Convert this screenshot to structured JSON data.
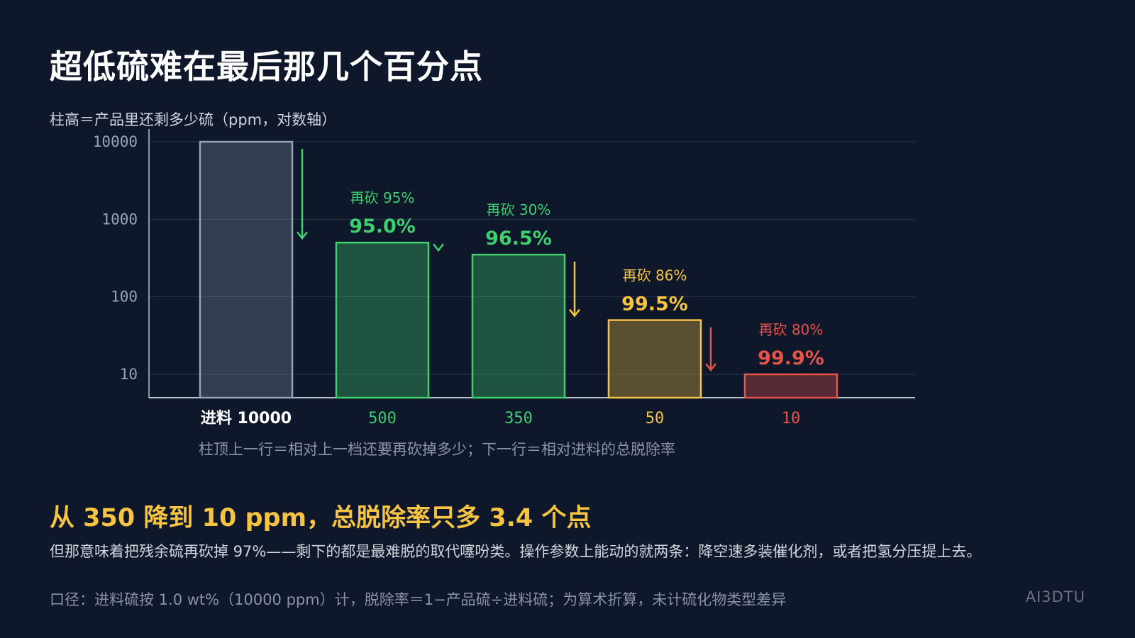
{
  "title": "超低硫难在最后那几个百分点",
  "note": "柱顶上一行＝相对上一档还要再砍掉多少；下一行＝相对进料的总脱除率",
  "headline": "从 350 降到 10 ppm，总脱除率只多 3.4 个点",
  "body": "但那意味着把残余硫再砍掉 97%——剩下的都是最难脱的取代噻吩类。操作参数上能动的就两条：降空速多装催化剂，或者把氢分压提上去。",
  "footnote": "口径：进料硫按 1.0 wt%（10000 ppm）计，脱除率＝1−产品硫÷进料硫；为算术折算，未计硫化物类型差异",
  "brand": "AI3DTU",
  "chart_data": {
    "type": "bar",
    "ylabel": "柱高＝产品里还剩多少硫（ppm，对数轴）",
    "yscale": "log",
    "ylim": [
      5,
      10000
    ],
    "yticks": [
      10,
      100,
      1000,
      10000
    ],
    "grid": true,
    "categories": [
      "进料 10000",
      "500",
      "350",
      "50",
      "10"
    ],
    "values": [
      10000,
      500,
      350,
      50,
      10
    ],
    "step_labels": [
      "",
      "再砍 95%",
      "再砍 30%",
      "再砍 86%",
      "再砍 80%"
    ],
    "total_labels": [
      "",
      "95.0%",
      "96.5%",
      "99.5%",
      "99.9%"
    ],
    "colors": {
      "feed": "#94a3b8",
      "green": "#3ecf6e",
      "yellow": "#f6c343",
      "red": "#e5534b"
    },
    "bar_colors": [
      "feed",
      "green",
      "green",
      "yellow",
      "red"
    ]
  }
}
